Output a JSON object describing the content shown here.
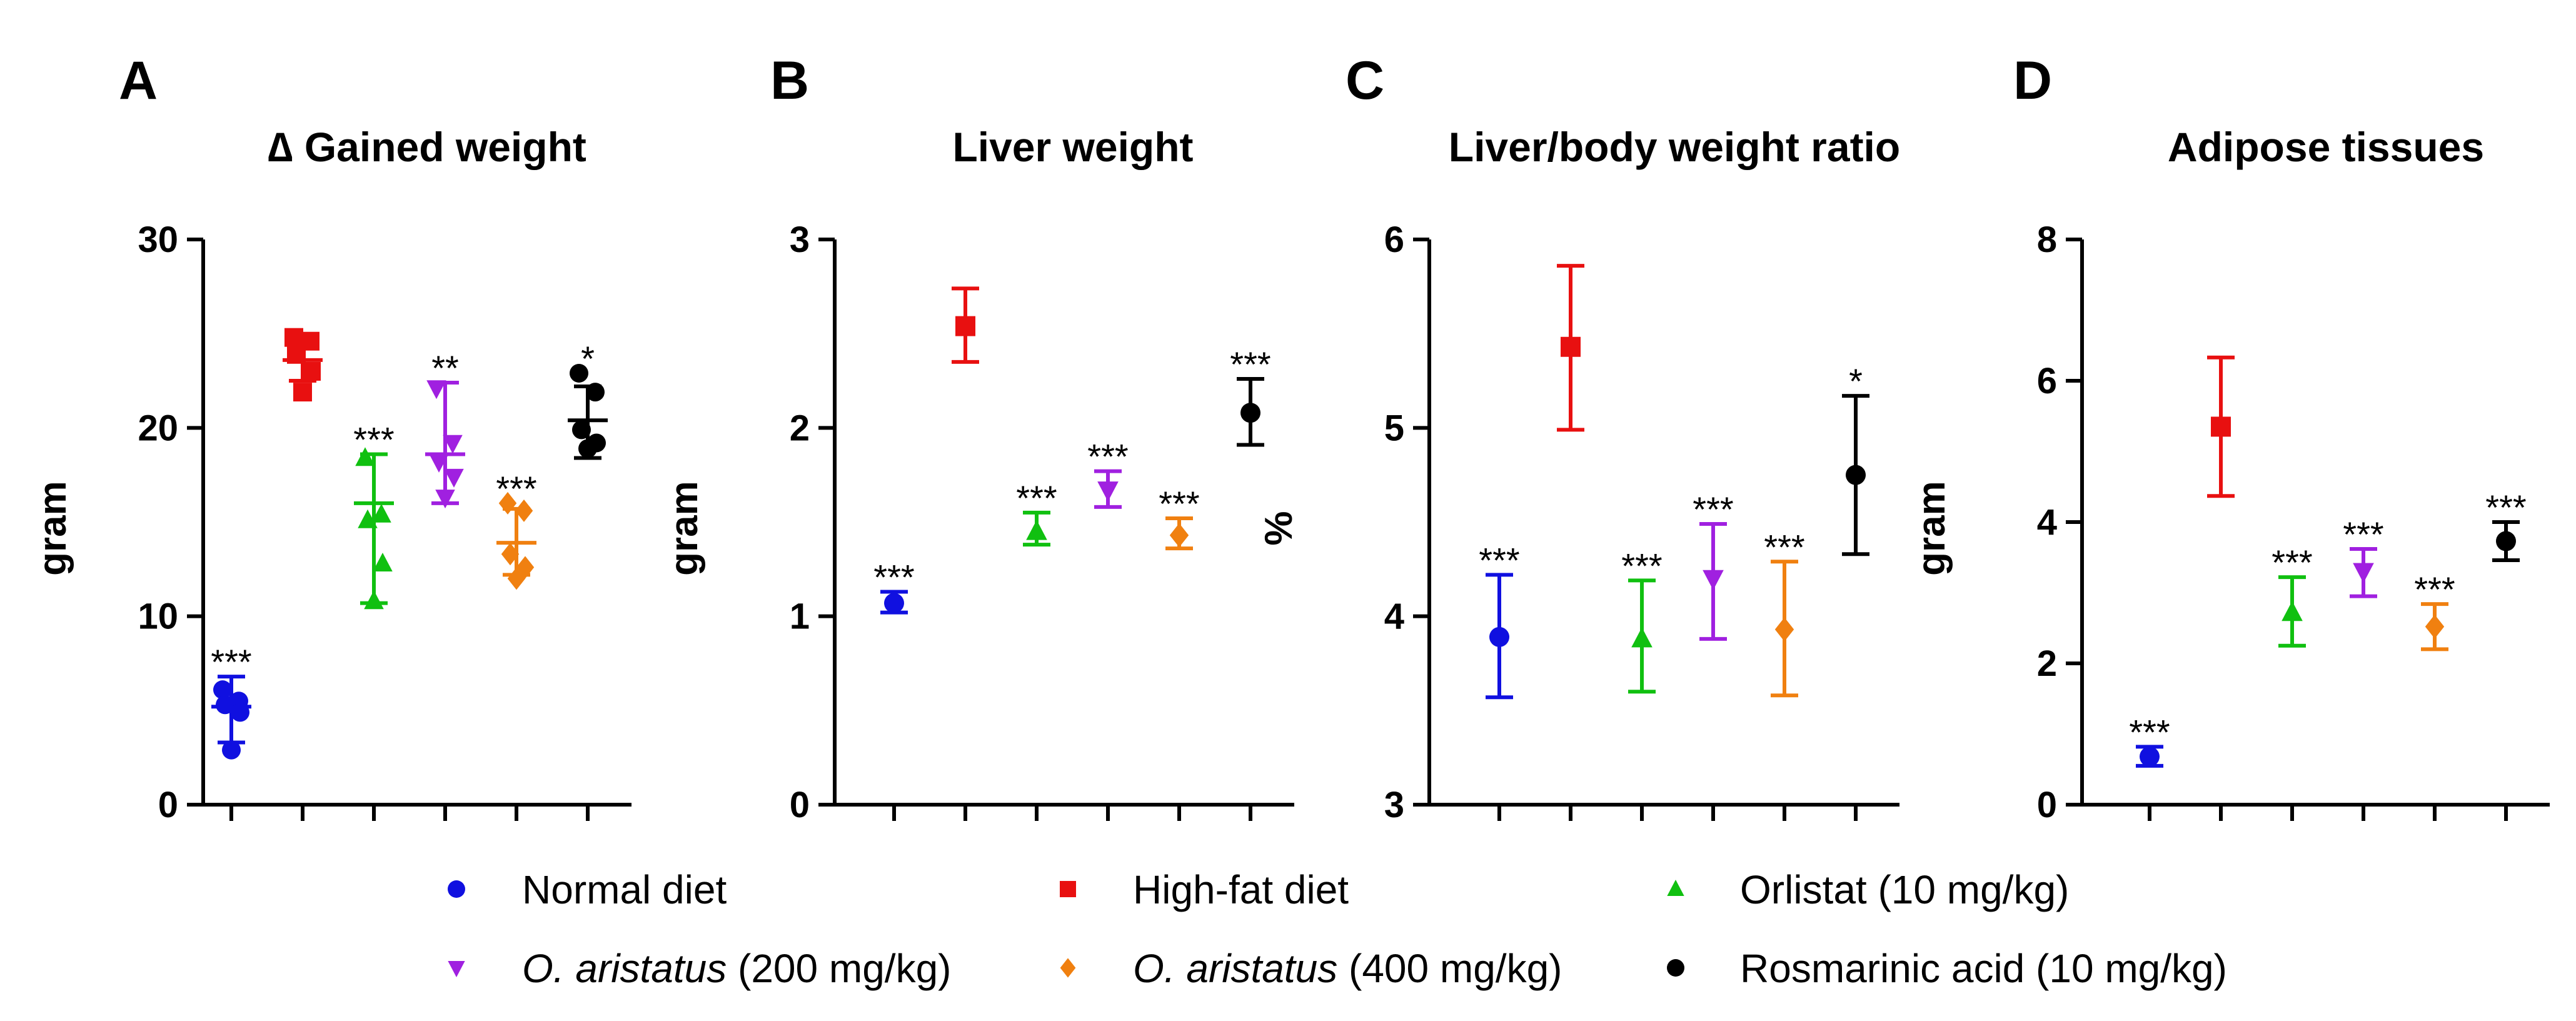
{
  "colors": {
    "normal": "#1010e0",
    "highfat": "#e81010",
    "orlistat": "#10c010",
    "oa200": "#a020e0",
    "oa400": "#f08010",
    "rosmarinic": "#000000"
  },
  "legend": [
    {
      "key": "normal",
      "marker": "circle",
      "italic": "",
      "label": "Normal diet"
    },
    {
      "key": "highfat",
      "marker": "square",
      "italic": "",
      "label": "High-fat diet"
    },
    {
      "key": "orlistat",
      "marker": "triangle-up",
      "italic": "",
      "label": "Orlistat (10 mg/kg)"
    },
    {
      "key": "oa200",
      "marker": "triangle-down",
      "italic": "O. aristatus",
      "label": " (200 mg/kg)"
    },
    {
      "key": "oa400",
      "marker": "diamond",
      "italic": "O. aristatus",
      "label": " (400 mg/kg)"
    },
    {
      "key": "rosmarinic",
      "marker": "circle",
      "italic": "",
      "label": "Rosmarinic acid (10 mg/kg)"
    }
  ],
  "chart_data": [
    {
      "type": "scatter",
      "panel": "A",
      "title": "∆ Gained weight",
      "ylabel": "gram",
      "ylim": [
        0,
        30
      ],
      "yticks": [
        "0",
        "10",
        "20",
        "30"
      ],
      "groups": [
        {
          "key": "normal",
          "marker": "circle",
          "mean": 5.2,
          "sd_low": 3.3,
          "sd_high": 6.8,
          "points": [
            6.1,
            5.5,
            5.3,
            4.9,
            2.9
          ],
          "sig": "***"
        },
        {
          "key": "highfat",
          "marker": "square",
          "mean": 23.6,
          "sd_low": 22.5,
          "sd_high": 24.7,
          "points": [
            24.8,
            24.6,
            23.9,
            23.0,
            21.9
          ],
          "sig": ""
        },
        {
          "key": "orlistat",
          "marker": "triangle-up",
          "mean": 16.0,
          "sd_low": 10.7,
          "sd_high": 18.6,
          "points": [
            18.4,
            15.4,
            15.1,
            12.8,
            10.8
          ],
          "sig": "***"
        },
        {
          "key": "oa200",
          "marker": "triangle-down",
          "mean": 18.6,
          "sd_low": 16.0,
          "sd_high": 22.4,
          "points": [
            22.1,
            19.2,
            18.2,
            17.4,
            16.3
          ],
          "sig": "**"
        },
        {
          "key": "oa400",
          "marker": "diamond",
          "mean": 13.9,
          "sd_low": 12.2,
          "sd_high": 15.7,
          "points": [
            16.0,
            15.6,
            13.3,
            12.6,
            12.0
          ],
          "sig": "***"
        },
        {
          "key": "rosmarinic",
          "marker": "circle",
          "mean": 20.4,
          "sd_low": 18.4,
          "sd_high": 22.2,
          "points": [
            22.9,
            21.9,
            19.9,
            19.2,
            18.9
          ],
          "sig": "*"
        }
      ]
    },
    {
      "type": "scatter",
      "panel": "B",
      "title": "Liver weight",
      "ylabel": "gram",
      "ylim": [
        0,
        3
      ],
      "yticks": [
        "0",
        "1",
        "2",
        "3"
      ],
      "groups": [
        {
          "key": "normal",
          "marker": "circle",
          "mean": 1.07,
          "sd_low": 1.02,
          "sd_high": 1.13,
          "points": [],
          "sig": "***"
        },
        {
          "key": "highfat",
          "marker": "square",
          "mean": 2.54,
          "sd_low": 2.35,
          "sd_high": 2.74,
          "points": [],
          "sig": ""
        },
        {
          "key": "orlistat",
          "marker": "triangle-up",
          "mean": 1.45,
          "sd_low": 1.38,
          "sd_high": 1.55,
          "points": [],
          "sig": "***"
        },
        {
          "key": "oa200",
          "marker": "triangle-down",
          "mean": 1.67,
          "sd_low": 1.58,
          "sd_high": 1.77,
          "points": [],
          "sig": "***"
        },
        {
          "key": "oa400",
          "marker": "diamond",
          "mean": 1.43,
          "sd_low": 1.36,
          "sd_high": 1.52,
          "points": [],
          "sig": "***"
        },
        {
          "key": "rosmarinic",
          "marker": "circle",
          "mean": 2.08,
          "sd_low": 1.91,
          "sd_high": 2.26,
          "points": [],
          "sig": "***"
        }
      ]
    },
    {
      "type": "scatter",
      "panel": "C",
      "title": "Liver/body weight ratio",
      "ylabel": "%",
      "ylim": [
        3,
        6
      ],
      "yticks": [
        "3",
        "4",
        "5",
        "6"
      ],
      "groups": [
        {
          "key": "normal",
          "marker": "circle",
          "mean": 3.89,
          "sd_low": 3.57,
          "sd_high": 4.22,
          "points": [],
          "sig": "***"
        },
        {
          "key": "highfat",
          "marker": "square",
          "mean": 5.43,
          "sd_low": 4.99,
          "sd_high": 5.86,
          "points": [],
          "sig": ""
        },
        {
          "key": "orlistat",
          "marker": "triangle-up",
          "mean": 3.88,
          "sd_low": 3.6,
          "sd_high": 4.19,
          "points": [],
          "sig": "***"
        },
        {
          "key": "oa200",
          "marker": "triangle-down",
          "mean": 4.2,
          "sd_low": 3.88,
          "sd_high": 4.49,
          "points": [],
          "sig": "***"
        },
        {
          "key": "oa400",
          "marker": "diamond",
          "mean": 3.93,
          "sd_low": 3.58,
          "sd_high": 4.29,
          "points": [],
          "sig": "***"
        },
        {
          "key": "rosmarinic",
          "marker": "circle",
          "mean": 4.75,
          "sd_low": 4.33,
          "sd_high": 5.17,
          "points": [],
          "sig": "*"
        }
      ]
    },
    {
      "type": "scatter",
      "panel": "D",
      "title": "Adipose tissues",
      "ylabel": "gram",
      "ylim": [
        0,
        8
      ],
      "yticks": [
        "0",
        "2",
        "4",
        "6",
        "8"
      ],
      "groups": [
        {
          "key": "normal",
          "marker": "circle",
          "mean": 0.68,
          "sd_low": 0.55,
          "sd_high": 0.82,
          "points": [],
          "sig": "***"
        },
        {
          "key": "highfat",
          "marker": "square",
          "mean": 5.35,
          "sd_low": 4.37,
          "sd_high": 6.33,
          "points": [],
          "sig": ""
        },
        {
          "key": "orlistat",
          "marker": "triangle-up",
          "mean": 2.72,
          "sd_low": 2.25,
          "sd_high": 3.22,
          "points": [],
          "sig": "***"
        },
        {
          "key": "oa200",
          "marker": "triangle-down",
          "mean": 3.3,
          "sd_low": 2.95,
          "sd_high": 3.62,
          "points": [],
          "sig": "***"
        },
        {
          "key": "oa400",
          "marker": "diamond",
          "mean": 2.52,
          "sd_low": 2.2,
          "sd_high": 2.84,
          "points": [],
          "sig": "***"
        },
        {
          "key": "rosmarinic",
          "marker": "circle",
          "mean": 3.73,
          "sd_low": 3.46,
          "sd_high": 4.0,
          "points": [],
          "sig": "***"
        }
      ]
    }
  ]
}
